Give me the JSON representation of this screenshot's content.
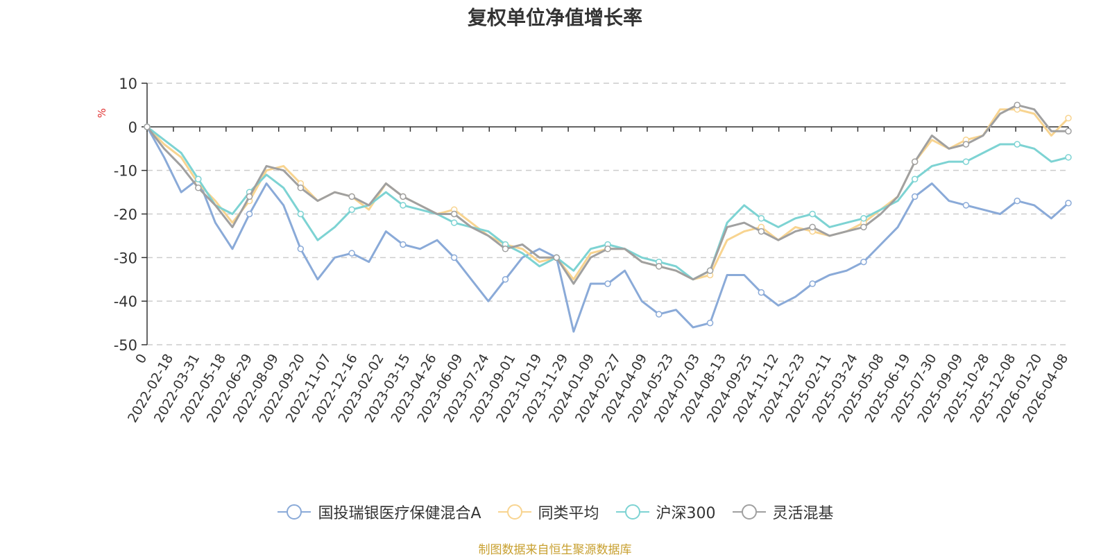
{
  "chart_data": {
    "type": "line",
    "title": "复权单位净值增长率",
    "ylabel": "%",
    "xlabel": "",
    "ylim": [
      -50,
      10
    ],
    "yticks": [
      10,
      0,
      -10,
      -20,
      -30,
      -40,
      -50
    ],
    "x_tick_labels": [
      "0",
      "2022-02-18",
      "2022-03-31",
      "2022-05-18",
      "2022-06-29",
      "2022-08-09",
      "2022-09-20",
      "2022-11-07",
      "2022-12-16",
      "2023-02-02",
      "2023-03-15",
      "2023-04-26",
      "2023-06-09",
      "2023-07-24",
      "2023-09-01",
      "2023-10-19",
      "2023-11-29",
      "2024-01-09",
      "2024-02-27",
      "2024-04-09",
      "2024-05-23",
      "2024-07-03",
      "2024-08-13",
      "2024-09-25",
      "2024-11-12",
      "2024-12-23",
      "2025-02-11",
      "2025-03-24",
      "2025-05-08",
      "2025-06-19",
      "2025-07-30",
      "2025-09-09",
      "2025-10-28",
      "2025-12-08",
      "2026-01-20",
      "2026-04-08"
    ],
    "series": [
      {
        "name": "国投瑞银医疗保健混合A",
        "color": "#8aaad8",
        "values": [
          0,
          -7,
          -15,
          -12,
          -22,
          -28,
          -20,
          -13,
          -18,
          -28,
          -35,
          -30,
          -29,
          -31,
          -24,
          -27,
          -28,
          -26,
          -30,
          -35,
          -40,
          -35,
          -30,
          -28,
          -30,
          -47,
          -36,
          -36,
          -33,
          -40,
          -43,
          -42,
          -46,
          -45,
          -34,
          -34,
          -38,
          -41,
          -39,
          -36,
          -34,
          -33,
          -31,
          -27,
          -23,
          -16,
          -13,
          -17,
          -18,
          -19,
          -20,
          -17,
          -18,
          -21,
          -17.5
        ]
      },
      {
        "name": "同类平均",
        "color": "#f8d490",
        "values": [
          0,
          -4,
          -7,
          -13,
          -17,
          -22,
          -17,
          -10,
          -9,
          -13,
          -17,
          -15,
          -16,
          -19,
          -13,
          -16,
          -18,
          -20,
          -19,
          -22,
          -25,
          -27,
          -28,
          -31,
          -30,
          -35,
          -29,
          -28,
          -28,
          -31,
          -32,
          -33,
          -35,
          -34,
          -26,
          -24,
          -23,
          -26,
          -23,
          -24,
          -25,
          -24,
          -22,
          -19,
          -16,
          -8,
          -3,
          -5,
          -3,
          -2,
          4,
          4,
          3,
          -2,
          2
        ]
      },
      {
        "name": "沪深300",
        "color": "#7dd3d3",
        "values": [
          0,
          -3,
          -6,
          -12,
          -18,
          -20,
          -15,
          -11,
          -14,
          -20,
          -26,
          -23,
          -19,
          -18,
          -15,
          -18,
          -19,
          -20,
          -22,
          -23,
          -24,
          -27,
          -29,
          -32,
          -30,
          -33,
          -28,
          -27,
          -28,
          -30,
          -31,
          -32,
          -35,
          -33,
          -22,
          -18,
          -21,
          -23,
          -21,
          -20,
          -23,
          -22,
          -21,
          -19,
          -17,
          -12,
          -9,
          -8,
          -8,
          -6,
          -4,
          -4,
          -5,
          -8,
          -7
        ]
      },
      {
        "name": "灵活混基",
        "color": "#a0a0a0",
        "values": [
          0,
          -5,
          -9,
          -14,
          -18,
          -23,
          -16,
          -9,
          -10,
          -14,
          -17,
          -15,
          -16,
          -18,
          -13,
          -16,
          -18,
          -20,
          -20,
          -23,
          -25,
          -28,
          -27,
          -30,
          -30,
          -36,
          -30,
          -28,
          -28,
          -31,
          -32,
          -33,
          -35,
          -33,
          -23,
          -22,
          -24,
          -26,
          -24,
          -23,
          -25,
          -24,
          -23,
          -20,
          -16,
          -8,
          -2,
          -5,
          -4,
          -2,
          3,
          5,
          4,
          -1,
          -1
        ]
      }
    ]
  },
  "legend": {
    "items": [
      {
        "label": "国投瑞银医疗保健混合A",
        "color": "#8aaad8"
      },
      {
        "label": "同类平均",
        "color": "#f8d490"
      },
      {
        "label": "沪深300",
        "color": "#7dd3d3"
      },
      {
        "label": "灵活混基",
        "color": "#a0a0a0"
      }
    ]
  },
  "source_note": "制图数据来自恒生聚源数据库"
}
